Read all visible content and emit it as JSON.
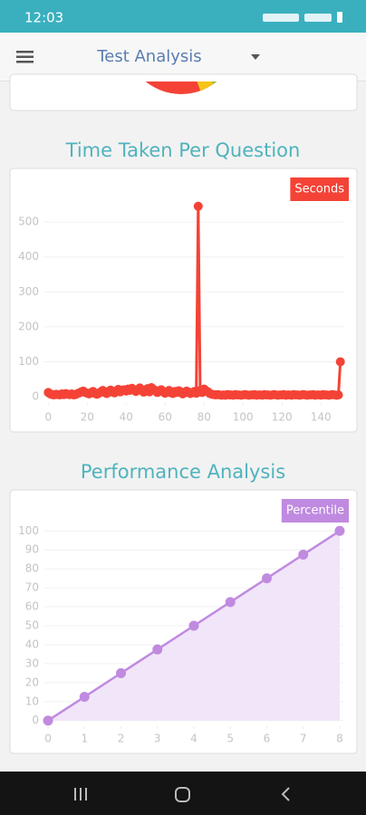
{
  "status_bar": {
    "time": "12:03"
  },
  "app_bar": {
    "title": "Test Analysis"
  },
  "chart_data": [
    {
      "type": "line",
      "title": "Time Taken Per Question",
      "x": [
        0,
        1,
        2,
        3,
        4,
        5,
        6,
        7,
        8,
        9,
        10,
        11,
        12,
        13,
        14,
        15,
        16,
        17,
        18,
        19,
        20,
        21,
        22,
        23,
        24,
        25,
        26,
        27,
        28,
        29,
        30,
        31,
        32,
        33,
        34,
        35,
        36,
        37,
        38,
        39,
        40,
        41,
        42,
        43,
        44,
        45,
        46,
        47,
        48,
        49,
        50,
        51,
        52,
        53,
        54,
        55,
        56,
        57,
        58,
        59,
        60,
        61,
        62,
        63,
        64,
        65,
        66,
        67,
        68,
        69,
        70,
        71,
        72,
        73,
        74,
        75,
        76,
        77,
        78,
        79,
        80,
        81,
        82,
        83,
        84,
        85,
        86,
        87,
        88,
        89,
        90,
        91,
        92,
        93,
        94,
        95,
        96,
        97,
        98,
        99,
        100,
        101,
        102,
        103,
        104,
        105,
        106,
        107,
        108,
        109,
        110,
        111,
        112,
        113,
        114,
        115,
        116,
        117,
        118,
        119,
        120,
        121,
        122,
        123,
        124,
        125,
        126,
        127,
        128,
        129,
        130,
        131,
        132,
        133,
        134,
        135,
        136,
        137,
        138,
        139,
        140,
        141,
        142,
        143,
        144,
        145,
        146,
        147,
        148,
        149,
        150
      ],
      "series": [
        {
          "name": "Seconds",
          "color": "#f44336",
          "values": [
            12,
            8,
            6,
            5,
            7,
            6,
            5,
            8,
            6,
            9,
            7,
            6,
            8,
            5,
            6,
            9,
            11,
            14,
            16,
            12,
            10,
            8,
            12,
            15,
            9,
            7,
            10,
            14,
            18,
            12,
            9,
            15,
            19,
            13,
            11,
            17,
            21,
            14,
            18,
            20,
            16,
            22,
            18,
            24,
            19,
            15,
            20,
            25,
            17,
            13,
            19,
            23,
            14,
            26,
            21,
            18,
            12,
            16,
            20,
            14,
            10,
            13,
            18,
            11,
            9,
            15,
            12,
            17,
            14,
            8,
            11,
            16,
            13,
            9,
            12,
            15,
            10,
            545,
            18,
            12,
            22,
            17,
            14,
            9,
            7,
            6,
            5,
            6,
            5,
            4,
            5,
            4,
            6,
            5,
            5,
            4,
            6,
            5,
            5,
            4,
            5,
            6,
            5,
            4,
            5,
            5,
            6,
            4,
            5,
            5,
            4,
            6,
            5,
            5,
            4,
            5,
            6,
            5,
            4,
            5,
            5,
            6,
            4,
            5,
            5,
            4,
            6,
            5,
            5,
            4,
            5,
            6,
            5,
            4,
            5,
            5,
            6,
            4,
            5,
            5,
            4,
            6,
            5,
            5,
            4,
            5,
            6,
            5,
            4,
            5,
            100
          ]
        }
      ],
      "xlim": [
        -2,
        152
      ],
      "xticks": [
        0,
        20,
        40,
        60,
        80,
        100,
        120,
        140
      ],
      "ylim": [
        -18,
        560
      ],
      "yticks": [
        0,
        100,
        200,
        300,
        400,
        500
      ],
      "grid": true
    },
    {
      "type": "area",
      "title": "Performance Analysis",
      "x": [
        0,
        1,
        2,
        3,
        4,
        5,
        6,
        7,
        8
      ],
      "series": [
        {
          "name": "Percentile",
          "color": "#c08ae0",
          "fill": "#f1e5f9",
          "values": [
            0,
            12.5,
            25,
            37.5,
            50,
            62.5,
            75,
            87.5,
            100
          ]
        }
      ],
      "xlim": [
        -0.1,
        8.1
      ],
      "xticks": [
        0,
        1,
        2,
        3,
        4,
        5,
        6,
        7,
        8
      ],
      "ylim": [
        -3,
        103
      ],
      "yticks": [
        0,
        10,
        20,
        30,
        40,
        50,
        60,
        70,
        80,
        90,
        100
      ],
      "grid": true
    }
  ]
}
